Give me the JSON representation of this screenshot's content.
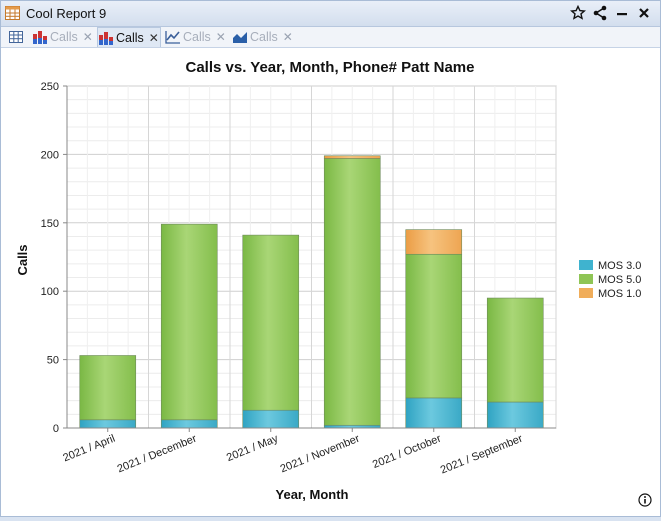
{
  "window": {
    "title": "Cool Report 9"
  },
  "toolbar_icons": [
    "star-icon",
    "share-icon",
    "minimize-icon",
    "close-icon"
  ],
  "tabs": [
    {
      "label": "",
      "icon": "table-icon",
      "active": false,
      "closable": false
    },
    {
      "label": "Calls",
      "icon": "bar-chart-icon",
      "active": false,
      "closable": true
    },
    {
      "label": "Calls",
      "icon": "bar-chart-icon",
      "active": true,
      "closable": true
    },
    {
      "label": "Calls",
      "icon": "line-chart-icon",
      "active": false,
      "closable": true
    },
    {
      "label": "Calls",
      "icon": "area-chart-icon",
      "active": false,
      "closable": true
    }
  ],
  "colors": {
    "mos3": "#3fb3cf",
    "mos5": "#8fc555",
    "mos1": "#f0ad5a"
  },
  "chart_data": {
    "type": "bar",
    "stacked": true,
    "title": "Calls vs. Year, Month, Phone# Patt Name",
    "xlabel": "Year, Month",
    "ylabel": "Calls",
    "ylim": [
      0,
      250
    ],
    "yticks": [
      0,
      50,
      100,
      150,
      200,
      250
    ],
    "grid": true,
    "legend_position": "right",
    "categories": [
      "2021 / April",
      "2021 / December",
      "2021 / May",
      "2021 / November",
      "2021 / October",
      "2021 / September"
    ],
    "series": [
      {
        "name": "MOS 3.0",
        "color": "#3fb3cf",
        "values": [
          6,
          6,
          13,
          2,
          22,
          19
        ]
      },
      {
        "name": "MOS 5.0",
        "color": "#8fc555",
        "values": [
          47,
          143,
          128,
          195,
          105,
          76
        ]
      },
      {
        "name": "MOS 1.0",
        "color": "#f0ad5a",
        "values": [
          0,
          0,
          0,
          2,
          18,
          0
        ]
      }
    ]
  }
}
